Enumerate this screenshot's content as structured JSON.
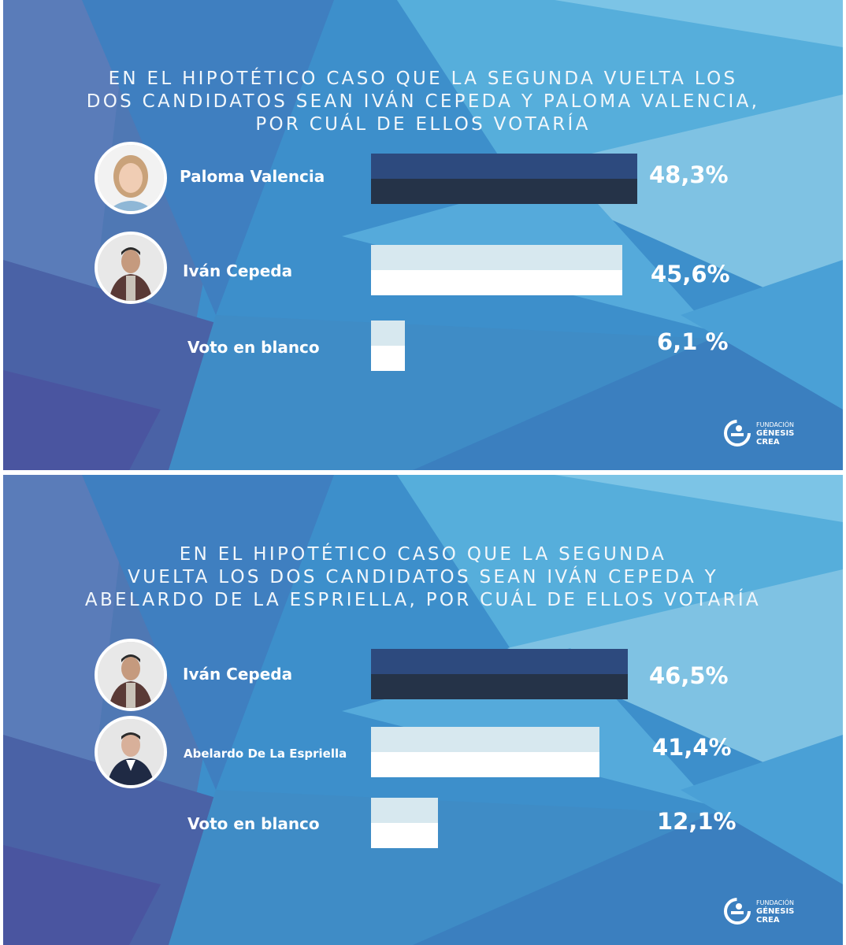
{
  "brand": {
    "line1": "FUNDACIÓN",
    "line2": "GÉNESIS",
    "line3": "CREA",
    "icon": "genesis-crea-logo-icon"
  },
  "colors": {
    "bar_dark_top": "#2d4a7e",
    "bar_dark_bottom": "#253348",
    "bar_light_top": "#d7e8ef",
    "bar_light_bottom": "#ffffff",
    "background": "#3f8fca"
  },
  "panels": [
    {
      "question": "EN EL HIPOTÉTICO CASO QUE LA SEGUNDA VUELTA LOS\nDOS CANDIDATOS SEAN IVÁN CEPEDA Y PALOMA VALENCIA,\nPOR CUÁL DE ELLOS VOTARÍA",
      "rows": [
        {
          "name": "Paloma Valencia",
          "pct_label": "48,3%",
          "avatar": "paloma-valencia-photo",
          "bar": "dark"
        },
        {
          "name": "Iván Cepeda",
          "pct_label": "45,6%",
          "avatar": "ivan-cepeda-photo",
          "bar": "light"
        },
        {
          "name": "Voto en blanco",
          "pct_label": "6,1 %",
          "avatar": "",
          "bar": "light"
        }
      ]
    },
    {
      "question": "EN EL HIPOTÉTICO CASO QUE LA SEGUNDA\nVUELTA LOS DOS CANDIDATOS SEAN IVÁN CEPEDA Y\nABELARDO DE LA ESPRIELLA, POR CUÁL DE ELLOS VOTARÍA",
      "rows": [
        {
          "name": "Iván Cepeda",
          "pct_label": "46,5%",
          "avatar": "ivan-cepeda-photo",
          "bar": "dark"
        },
        {
          "name": "Abelardo De La Espriella",
          "pct_label": "41,4%",
          "avatar": "abelardo-de-la-espriella-photo",
          "bar": "light"
        },
        {
          "name": "Voto en blanco",
          "pct_label": "12,1%",
          "avatar": "",
          "bar": "light"
        }
      ]
    }
  ],
  "chart_data": [
    {
      "type": "bar",
      "orientation": "horizontal",
      "title": "EN EL HIPOTÉTICO CASO QUE LA SEGUNDA VUELTA LOS DOS CANDIDATOS SEAN IVÁN CEPEDA Y PALOMA VALENCIA, POR CUÁL DE ELLOS VOTARÍA",
      "categories": [
        "Paloma Valencia",
        "Iván Cepeda",
        "Voto en blanco"
      ],
      "values": [
        48.3,
        45.6,
        6.1
      ],
      "data_labels": [
        "48,3%",
        "45,6%",
        "6,1 %"
      ],
      "grid": false
    },
    {
      "type": "bar",
      "orientation": "horizontal",
      "title": "EN EL HIPOTÉTICO CASO QUE LA SEGUNDA VUELTA LOS DOS CANDIDATOS SEAN IVÁN CEPEDA Y ABELARDO DE LA ESPRIELLA, POR CUÁL DE ELLOS VOTARÍA",
      "categories": [
        "Iván Cepeda",
        "Abelardo De La Espriella",
        "Voto en blanco"
      ],
      "values": [
        46.5,
        41.4,
        12.1
      ],
      "data_labels": [
        "46,5%",
        "41,4%",
        "12,1%"
      ],
      "grid": false
    }
  ]
}
